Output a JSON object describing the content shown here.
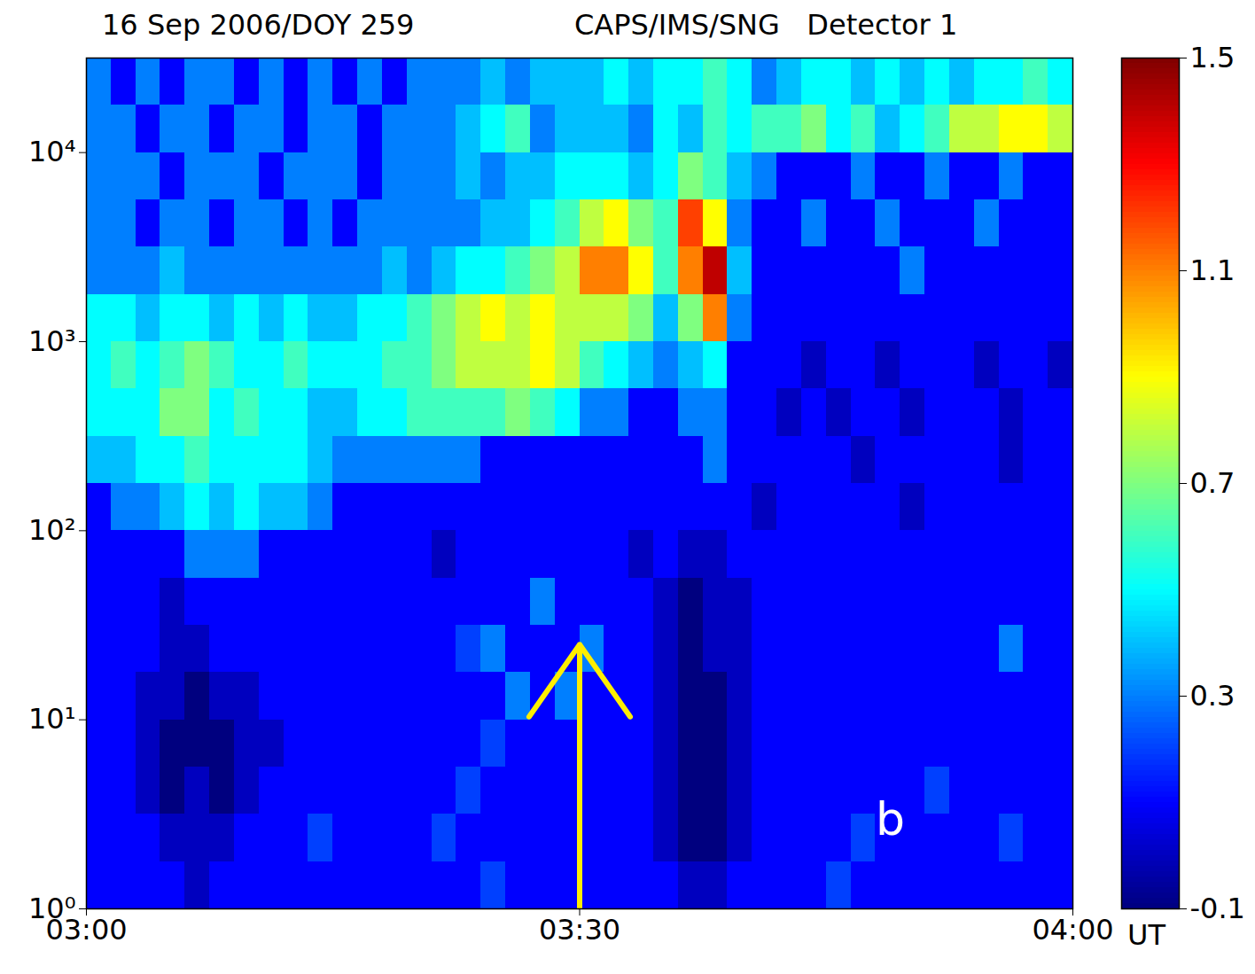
{
  "chart_data": {
    "type": "heatmap",
    "title": "16 Sep 2006/DOY 259",
    "subtitle": "CAPS/IMS/SNG   Detector 1",
    "panel_label": "b",
    "x_label": "UT",
    "log": "y",
    "color": "jet",
    "xlim": [
      0,
      60
    ],
    "ylim": [
      1,
      31623
    ],
    "xticks": [
      {
        "value": 0,
        "label": "03:00"
      },
      {
        "value": 30,
        "label": "03:30"
      },
      {
        "value": 60,
        "label": "04:00"
      }
    ],
    "yticks": [
      {
        "value": 1,
        "label": "10⁰"
      },
      {
        "value": 10,
        "label": "10¹"
      },
      {
        "value": 100,
        "label": "10²"
      },
      {
        "value": 1000,
        "label": "10³"
      },
      {
        "value": 10000,
        "label": "10⁴"
      }
    ],
    "colorbar": {
      "range": [
        -0.1,
        1.5
      ],
      "ticks": [
        -0.1,
        0.3,
        0.7,
        1.1,
        1.5
      ]
    },
    "arrow": {
      "x": 30,
      "y_from": 1,
      "y_to": 25,
      "color": "#ffee00"
    },
    "x_bins": [
      0,
      1.5,
      3,
      4.5,
      6,
      7.5,
      9,
      10.5,
      12,
      13.5,
      15,
      16.5,
      18,
      19.5,
      21,
      22.5,
      24,
      25.5,
      27,
      28.5,
      30,
      31.5,
      33,
      34.5,
      36,
      37.5,
      39,
      40.5,
      42,
      43.5,
      45,
      46.5,
      48,
      49.5,
      51,
      52.5,
      54,
      55.5,
      57,
      58.5,
      60
    ],
    "y_bins": [
      1,
      1.78,
      3.16,
      5.62,
      10,
      17.8,
      31.6,
      56.2,
      100,
      178,
      316,
      562,
      1000,
      1778,
      3162,
      5623,
      10000,
      17783,
      31623
    ],
    "cells": [
      [
        0.1,
        0.1,
        0.1,
        0.1,
        0.0,
        0.1,
        0.1,
        0.1,
        0.1,
        0.1,
        0.1,
        0.1,
        0.1,
        0.1,
        0.1,
        0.1,
        0.2,
        0.1,
        0.1,
        0.1,
        0.1,
        0.1,
        0.1,
        0.1,
        0.0,
        0.0,
        0.1,
        0.1,
        0.1,
        0.1,
        0.2,
        0.1,
        0.1,
        0.1,
        0.1,
        0.1,
        0.1,
        0.1,
        0.1,
        0.1
      ],
      [
        0.1,
        0.1,
        0.1,
        0.0,
        0.0,
        0.0,
        0.1,
        0.1,
        0.1,
        0.2,
        0.1,
        0.1,
        0.1,
        0.1,
        0.2,
        0.1,
        0.1,
        0.1,
        0.1,
        0.1,
        0.1,
        0.1,
        0.1,
        0.0,
        -0.1,
        -0.1,
        0.0,
        0.1,
        0.1,
        0.1,
        0.1,
        0.2,
        0.1,
        0.1,
        0.1,
        0.1,
        0.1,
        0.2,
        0.1,
        0.1
      ],
      [
        0.1,
        0.1,
        0.0,
        -0.1,
        0.0,
        -0.1,
        0.0,
        0.1,
        0.1,
        0.1,
        0.1,
        0.1,
        0.1,
        0.1,
        0.1,
        0.2,
        0.1,
        0.1,
        0.1,
        0.1,
        0.1,
        0.1,
        0.1,
        0.0,
        -0.1,
        -0.1,
        0.0,
        0.1,
        0.1,
        0.1,
        0.1,
        0.1,
        0.1,
        0.1,
        0.2,
        0.1,
        0.1,
        0.1,
        0.1,
        0.1
      ],
      [
        0.1,
        0.1,
        0.0,
        -0.1,
        -0.1,
        -0.1,
        0.0,
        0.0,
        0.1,
        0.1,
        0.1,
        0.1,
        0.1,
        0.1,
        0.1,
        0.1,
        0.2,
        0.1,
        0.1,
        0.1,
        0.1,
        0.1,
        0.1,
        0.0,
        -0.1,
        -0.1,
        0.0,
        0.1,
        0.1,
        0.1,
        0.1,
        0.1,
        0.1,
        0.1,
        0.1,
        0.1,
        0.1,
        0.1,
        0.1,
        0.1
      ],
      [
        0.1,
        0.1,
        0.0,
        0.0,
        -0.1,
        0.0,
        0.0,
        0.1,
        0.1,
        0.1,
        0.1,
        0.1,
        0.1,
        0.1,
        0.1,
        0.1,
        0.1,
        0.3,
        0.1,
        0.3,
        0.1,
        0.1,
        0.1,
        0.0,
        -0.1,
        -0.1,
        0.0,
        0.1,
        0.1,
        0.1,
        0.1,
        0.1,
        0.1,
        0.1,
        0.1,
        0.1,
        0.1,
        0.1,
        0.1,
        0.1
      ],
      [
        0.1,
        0.1,
        0.1,
        0.0,
        0.0,
        0.1,
        0.1,
        0.1,
        0.1,
        0.1,
        0.1,
        0.1,
        0.1,
        0.1,
        0.1,
        0.2,
        0.3,
        0.1,
        0.1,
        0.1,
        0.3,
        0.1,
        0.1,
        0.0,
        -0.1,
        0.0,
        0.0,
        0.1,
        0.1,
        0.1,
        0.1,
        0.1,
        0.1,
        0.1,
        0.1,
        0.1,
        0.1,
        0.3,
        0.1,
        0.1
      ],
      [
        0.1,
        0.1,
        0.1,
        0.0,
        0.1,
        0.1,
        0.1,
        0.1,
        0.1,
        0.1,
        0.1,
        0.1,
        0.1,
        0.1,
        0.1,
        0.1,
        0.1,
        0.1,
        0.3,
        0.1,
        0.1,
        0.1,
        0.1,
        0.0,
        -0.1,
        0.0,
        0.0,
        0.1,
        0.1,
        0.1,
        0.1,
        0.1,
        0.1,
        0.1,
        0.1,
        0.1,
        0.1,
        0.1,
        0.1,
        0.1
      ],
      [
        0.1,
        0.1,
        0.1,
        0.1,
        0.3,
        0.3,
        0.3,
        0.1,
        0.1,
        0.1,
        0.1,
        0.1,
        0.1,
        0.1,
        0.0,
        0.1,
        0.1,
        0.1,
        0.1,
        0.1,
        0.1,
        0.1,
        0.0,
        0.1,
        0.0,
        0.0,
        0.1,
        0.1,
        0.1,
        0.1,
        0.1,
        0.1,
        0.1,
        0.1,
        0.1,
        0.1,
        0.1,
        0.1,
        0.1,
        0.1
      ],
      [
        0.1,
        0.3,
        0.3,
        0.4,
        0.5,
        0.4,
        0.5,
        0.4,
        0.4,
        0.3,
        0.1,
        0.1,
        0.1,
        0.1,
        0.1,
        0.1,
        0.1,
        0.1,
        0.1,
        0.1,
        0.1,
        0.1,
        0.1,
        0.1,
        0.1,
        0.1,
        0.1,
        0.0,
        0.1,
        0.1,
        0.1,
        0.1,
        0.1,
        0.0,
        0.1,
        0.1,
        0.1,
        0.1,
        0.1,
        0.1
      ],
      [
        0.4,
        0.4,
        0.5,
        0.5,
        0.6,
        0.5,
        0.5,
        0.5,
        0.5,
        0.4,
        0.3,
        0.3,
        0.3,
        0.3,
        0.3,
        0.3,
        0.1,
        0.1,
        0.1,
        0.1,
        0.1,
        0.1,
        0.1,
        0.1,
        0.1,
        0.3,
        0.1,
        0.1,
        0.1,
        0.1,
        0.1,
        0.0,
        0.1,
        0.1,
        0.1,
        0.1,
        0.1,
        0.0,
        0.1,
        0.1
      ],
      [
        0.5,
        0.5,
        0.5,
        0.7,
        0.7,
        0.5,
        0.6,
        0.5,
        0.5,
        0.4,
        0.4,
        0.5,
        0.5,
        0.6,
        0.6,
        0.6,
        0.6,
        0.7,
        0.6,
        0.5,
        0.3,
        0.3,
        0.1,
        0.1,
        0.3,
        0.3,
        0.1,
        0.1,
        0.0,
        0.1,
        0.0,
        0.1,
        0.1,
        0.0,
        0.1,
        0.1,
        0.1,
        0.0,
        0.1,
        0.1
      ],
      [
        0.5,
        0.6,
        0.5,
        0.6,
        0.7,
        0.6,
        0.5,
        0.5,
        0.6,
        0.5,
        0.5,
        0.5,
        0.6,
        0.6,
        0.7,
        0.8,
        0.8,
        0.8,
        0.9,
        0.8,
        0.6,
        0.5,
        0.4,
        0.3,
        0.4,
        0.5,
        0.1,
        0.1,
        0.1,
        0.0,
        0.1,
        0.1,
        0.0,
        0.1,
        0.1,
        0.1,
        0.0,
        0.1,
        0.1,
        0.0
      ],
      [
        0.5,
        0.5,
        0.4,
        0.5,
        0.5,
        0.4,
        0.5,
        0.4,
        0.5,
        0.4,
        0.4,
        0.5,
        0.5,
        0.6,
        0.7,
        0.8,
        0.9,
        0.8,
        0.9,
        0.8,
        0.8,
        0.8,
        0.7,
        0.4,
        0.7,
        1.1,
        0.3,
        0.1,
        0.1,
        0.1,
        0.1,
        0.1,
        0.1,
        0.1,
        0.1,
        0.1,
        0.1,
        0.1,
        0.1,
        0.1
      ],
      [
        0.3,
        0.3,
        0.3,
        0.4,
        0.3,
        0.3,
        0.3,
        0.3,
        0.3,
        0.3,
        0.3,
        0.3,
        0.4,
        0.3,
        0.4,
        0.5,
        0.5,
        0.6,
        0.7,
        0.8,
        1.1,
        1.1,
        0.9,
        0.6,
        1.1,
        1.4,
        0.4,
        0.1,
        0.1,
        0.1,
        0.1,
        0.1,
        0.1,
        0.3,
        0.1,
        0.1,
        0.1,
        0.1,
        0.1,
        0.1
      ],
      [
        0.3,
        0.3,
        0.1,
        0.3,
        0.3,
        0.1,
        0.3,
        0.3,
        0.1,
        0.3,
        0.1,
        0.3,
        0.3,
        0.3,
        0.3,
        0.3,
        0.4,
        0.4,
        0.5,
        0.6,
        0.8,
        0.9,
        0.7,
        0.6,
        1.2,
        0.9,
        0.3,
        0.1,
        0.1,
        0.3,
        0.1,
        0.1,
        0.3,
        0.1,
        0.1,
        0.1,
        0.3,
        0.1,
        0.1,
        0.1
      ],
      [
        0.3,
        0.3,
        0.3,
        0.1,
        0.3,
        0.3,
        0.3,
        0.1,
        0.3,
        0.3,
        0.3,
        0.1,
        0.3,
        0.3,
        0.3,
        0.4,
        0.3,
        0.4,
        0.4,
        0.5,
        0.5,
        0.5,
        0.4,
        0.5,
        0.7,
        0.6,
        0.4,
        0.3,
        0.1,
        0.1,
        0.1,
        0.3,
        0.1,
        0.1,
        0.3,
        0.1,
        0.1,
        0.3,
        0.1,
        0.1
      ],
      [
        0.3,
        0.3,
        0.1,
        0.3,
        0.3,
        0.1,
        0.3,
        0.3,
        0.1,
        0.3,
        0.3,
        0.1,
        0.3,
        0.3,
        0.3,
        0.4,
        0.5,
        0.6,
        0.3,
        0.4,
        0.4,
        0.4,
        0.3,
        0.5,
        0.4,
        0.6,
        0.5,
        0.6,
        0.6,
        0.7,
        0.5,
        0.6,
        0.4,
        0.5,
        0.6,
        0.8,
        0.8,
        0.9,
        0.9,
        0.8
      ],
      [
        0.3,
        0.1,
        0.3,
        0.1,
        0.3,
        0.3,
        0.1,
        0.3,
        0.1,
        0.3,
        0.1,
        0.3,
        0.1,
        0.3,
        0.3,
        0.3,
        0.4,
        0.3,
        0.4,
        0.4,
        0.4,
        0.5,
        0.4,
        0.5,
        0.5,
        0.6,
        0.5,
        0.3,
        0.4,
        0.5,
        0.5,
        0.4,
        0.5,
        0.4,
        0.5,
        0.4,
        0.5,
        0.5,
        0.6,
        0.5
      ]
    ]
  }
}
